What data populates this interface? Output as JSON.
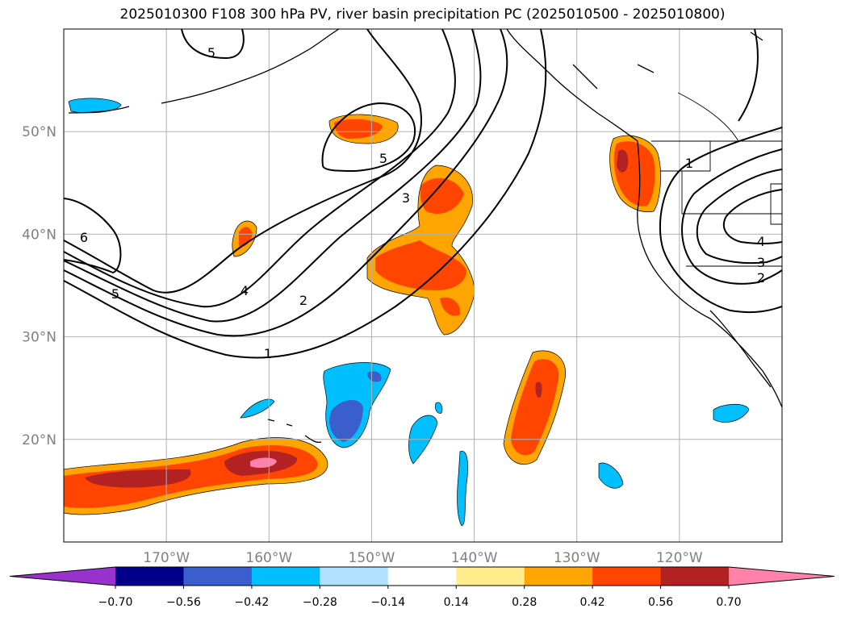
{
  "title": "2025010300 F108 300 hPa PV, river basin precipitation PC (2025010500 - 2025010800)",
  "map": {
    "lon_range": [
      -180,
      -110
    ],
    "lat_range": [
      10,
      60
    ],
    "lat_ticks": [
      {
        "value": 20,
        "label": "20°N"
      },
      {
        "value": 30,
        "label": "30°N"
      },
      {
        "value": 40,
        "label": "40°N"
      },
      {
        "value": 50,
        "label": "50°N"
      }
    ],
    "lon_ticks": [
      {
        "value": -170,
        "label": "170°W"
      },
      {
        "value": -160,
        "label": "160°W"
      },
      {
        "value": -150,
        "label": "150°W"
      },
      {
        "value": -140,
        "label": "140°W"
      },
      {
        "value": -130,
        "label": "130°W"
      },
      {
        "value": -120,
        "label": "120°W"
      }
    ],
    "grid": true
  },
  "colorbar": {
    "labels": [
      "−0.70",
      "−0.56",
      "−0.42",
      "−0.28",
      "−0.14",
      "0.14",
      "0.28",
      "0.42",
      "0.56",
      "0.70"
    ],
    "levels": [
      -0.7,
      -0.56,
      -0.42,
      -0.28,
      -0.14,
      0.14,
      0.28,
      0.42,
      0.56,
      0.7
    ],
    "colors": [
      "#9932cc",
      "#00008b",
      "#3a5fcd",
      "#00bfff",
      "#b0e2ff",
      "#ffffff",
      "#ffec8b",
      "#ffa500",
      "#ff4500",
      "#b22222",
      "#ff82ab"
    ],
    "extend": "both"
  },
  "contours": {
    "pv_labels": [
      "1",
      "1",
      "2",
      "2",
      "3",
      "3",
      "4",
      "4",
      "5",
      "5",
      "5",
      "6"
    ]
  },
  "colors": {
    "coastline": "#000000",
    "contour": "#000000",
    "grid": "#b0b0b0",
    "tick_label": "#808080"
  }
}
